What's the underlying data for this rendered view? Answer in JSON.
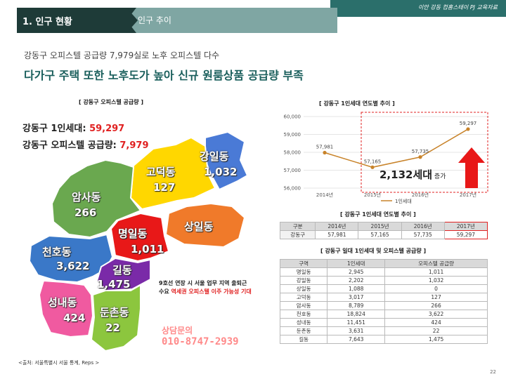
{
  "header": {
    "section_tab": "1. 인구 현황",
    "sub_tab": "인구 추이",
    "brand": "이안 강동 컴홈스테이 PJ 교육자료"
  },
  "subtitle": "강동구 오피스텔 공급량 7,979실로 노후 오피스텔 다수",
  "headline": "다가구 주택 또한 노후도가 높아 신규 원룸상품 공급량 부족",
  "map_section": {
    "caption": "[ 강동구 오피스텔 공급량 ]",
    "stat1_label": "강동구 1인세대: ",
    "stat1_value": "59,297",
    "stat2_label": "강동구 오피스텔 공급량: ",
    "stat2_value": "7,979",
    "districts": [
      {
        "name": "고덕동",
        "value": "127",
        "color": "#ffd700"
      },
      {
        "name": "강일동",
        "value": "1,032",
        "color": "#4a7ad6"
      },
      {
        "name": "암사동",
        "value": "266",
        "color": "#6aa84f"
      },
      {
        "name": "상일동",
        "value": "",
        "color": "#f07a2a"
      },
      {
        "name": "명일동",
        "value": "1,011",
        "color": "#e81818"
      },
      {
        "name": "천호동",
        "value": "3,622",
        "color": "#3a78c8"
      },
      {
        "name": "길동",
        "value": "1,475",
        "color": "#7a2aa8"
      },
      {
        "name": "성내동",
        "value": "424",
        "color": "#f05aa0"
      },
      {
        "name": "둔촌동",
        "value": "22",
        "color": "#8cc63e"
      }
    ],
    "note_line1": "9호선 연장 시 서울 업무 지역 출퇴근",
    "note_line2_pre": "수요 ",
    "note_line2_hl": "역세권 오피스텔 이주 가능성 기대",
    "contact_line1": "상담문의",
    "contact_line2": "010-8747-2939",
    "source": "<출처: 서울특별시 서울 통계, Reps >"
  },
  "chart_section": {
    "caption": "[ 강동구 1인세대 연도별 추이 ]",
    "increase_value": "2,132세대",
    "increase_suffix": " 증가",
    "legend": "1인세대"
  },
  "chart_data": {
    "type": "line",
    "title": "강동구 1인세대 연도별 추이",
    "categories": [
      "2014년",
      "2015년",
      "2016년",
      "2017년"
    ],
    "series": [
      {
        "name": "1인세대",
        "values": [
          57981,
          57165,
          57735,
          59297
        ],
        "color": "#c8832a"
      }
    ],
    "point_labels": [
      "57,981",
      "57,165",
      "57,735",
      "59,297"
    ],
    "ylim": [
      56000,
      60000
    ],
    "yticks": [
      56000,
      57000,
      58000,
      59000,
      60000
    ],
    "ytick_labels": [
      "56,000",
      "57,000",
      "58,000",
      "59,000",
      "60,000"
    ],
    "grid": true,
    "legend_position": "bottom"
  },
  "table1": {
    "caption": "[ 강동구 1인세대 연도별 추이 ]",
    "headers": [
      "구분",
      "2014년",
      "2015년",
      "2016년",
      "2017년"
    ],
    "row": [
      "강동구",
      "57,981",
      "57,165",
      "57,735",
      "59,297"
    ]
  },
  "table2": {
    "caption": "[ 강동구 일대 1인세대 및 오피스텔 공급량 ]",
    "headers": [
      "구역",
      "1인세대",
      "오피스텔 공급량"
    ],
    "rows": [
      [
        "명일동",
        "2,945",
        "1,011"
      ],
      [
        "강일동",
        "2,202",
        "1,032"
      ],
      [
        "상일동",
        "1,088",
        "0"
      ],
      [
        "고덕동",
        "3,017",
        "127"
      ],
      [
        "암사동",
        "8,789",
        "266"
      ],
      [
        "천호동",
        "18,824",
        "3,622"
      ],
      [
        "성내동",
        "11,451",
        "424"
      ],
      [
        "둔촌동",
        "3,631",
        "22"
      ],
      [
        "길동",
        "7,643",
        "1,475"
      ]
    ]
  },
  "page_number": "22"
}
